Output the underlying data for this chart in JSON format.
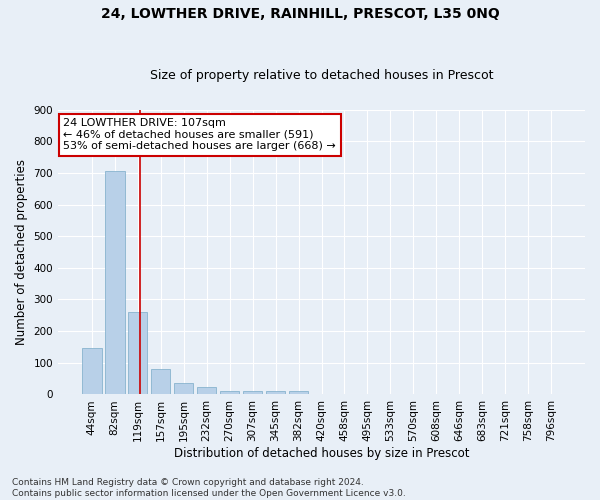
{
  "title": "24, LOWTHER DRIVE, RAINHILL, PRESCOT, L35 0NQ",
  "subtitle": "Size of property relative to detached houses in Prescot",
  "xlabel": "Distribution of detached houses by size in Prescot",
  "ylabel": "Number of detached properties",
  "bar_color": "#b8d0e8",
  "bar_edge_color": "#7aaac8",
  "background_color": "#e8eff7",
  "grid_color": "#ffffff",
  "categories": [
    "44sqm",
    "82sqm",
    "119sqm",
    "157sqm",
    "195sqm",
    "232sqm",
    "270sqm",
    "307sqm",
    "345sqm",
    "382sqm",
    "420sqm",
    "458sqm",
    "495sqm",
    "533sqm",
    "570sqm",
    "608sqm",
    "646sqm",
    "683sqm",
    "721sqm",
    "758sqm",
    "796sqm"
  ],
  "values": [
    148,
    706,
    260,
    82,
    36,
    22,
    12,
    12,
    12,
    10,
    0,
    0,
    0,
    0,
    0,
    0,
    0,
    0,
    0,
    0,
    0
  ],
  "ylim": [
    0,
    900
  ],
  "yticks": [
    0,
    100,
    200,
    300,
    400,
    500,
    600,
    700,
    800,
    900
  ],
  "vline_x": 2.08,
  "annotation_text": "24 LOWTHER DRIVE: 107sqm\n← 46% of detached houses are smaller (591)\n53% of semi-detached houses are larger (668) →",
  "annotation_box_color": "#ffffff",
  "annotation_box_edge": "#cc0000",
  "vline_color": "#cc0000",
  "footnote": "Contains HM Land Registry data © Crown copyright and database right 2024.\nContains public sector information licensed under the Open Government Licence v3.0.",
  "title_fontsize": 10,
  "subtitle_fontsize": 9,
  "xlabel_fontsize": 8.5,
  "ylabel_fontsize": 8.5,
  "tick_fontsize": 7.5,
  "annot_fontsize": 8,
  "footnote_fontsize": 6.5
}
